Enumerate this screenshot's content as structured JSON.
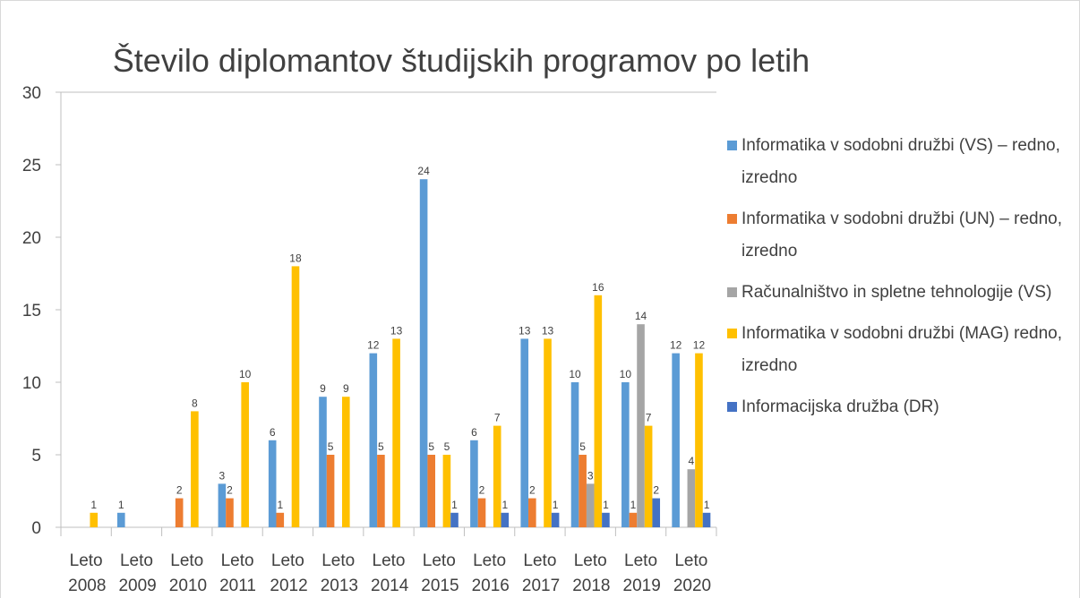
{
  "chart_data": {
    "type": "bar",
    "title": "Število diplomantov študijskih programov po letih",
    "categories": [
      "Leto 2008",
      "Leto 2009",
      "Leto 2010",
      "Leto 2011",
      "Leto 2012",
      "Leto 2013",
      "Leto 2014",
      "Leto 2015",
      "Leto 2016",
      "Leto 2017",
      "Leto 2018",
      "Leto 2019",
      "Leto 2020"
    ],
    "series": [
      {
        "name": "Informatika v sodobni družbi (VS) – redno, izredno",
        "color": "#5b9bd5",
        "values": [
          null,
          1,
          null,
          3,
          6,
          9,
          12,
          24,
          6,
          13,
          10,
          10,
          12
        ]
      },
      {
        "name": "Informatika v sodobni družbi (UN) – redno, izredno",
        "color": "#ed7d31",
        "values": [
          null,
          null,
          2,
          2,
          1,
          5,
          5,
          5,
          2,
          2,
          5,
          1,
          null
        ]
      },
      {
        "name": "Računalništvo in spletne tehnologije (VS)",
        "color": "#a5a5a5",
        "values": [
          null,
          null,
          null,
          null,
          null,
          null,
          null,
          null,
          null,
          null,
          3,
          14,
          4
        ]
      },
      {
        "name": "Informatika v sodobni družbi (MAG) redno, izredno",
        "color": "#ffc000",
        "values": [
          1,
          null,
          8,
          10,
          18,
          9,
          13,
          5,
          7,
          13,
          16,
          7,
          12
        ]
      },
      {
        "name": "Informacijska družba (DR)",
        "color": "#4472c4",
        "values": [
          null,
          null,
          null,
          null,
          null,
          null,
          null,
          1,
          1,
          1,
          1,
          2,
          1
        ]
      }
    ],
    "ylim": [
      0,
      30
    ],
    "yticks": [
      0,
      5,
      10,
      15,
      20,
      25,
      30
    ],
    "grid": false,
    "legend": "right"
  }
}
